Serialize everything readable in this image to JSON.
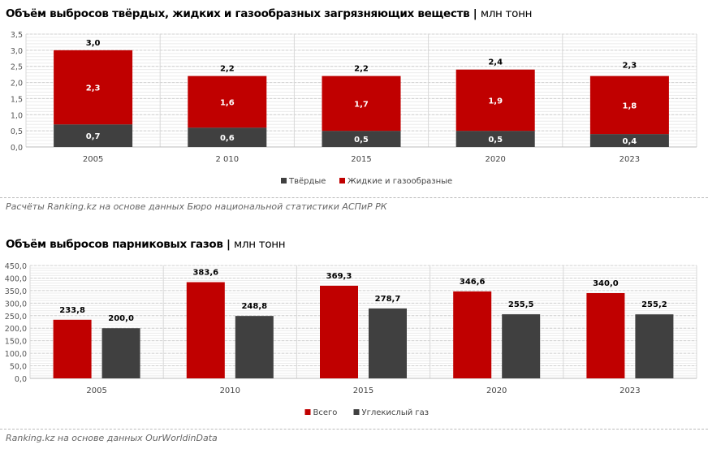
{
  "chart_data": [
    {
      "type": "bar",
      "stacked": true,
      "title": "Объём выбросов твёрдых, жидких и газообразных загрязняющих веществ",
      "unit": "млн тонн",
      "categories": [
        "2005",
        "2 010",
        "2015",
        "2020",
        "2023"
      ],
      "series": [
        {
          "name": "Твёрдые",
          "color": "#404040",
          "values": [
            0.7,
            0.6,
            0.5,
            0.5,
            0.4
          ],
          "labels": [
            "0,7",
            "0,6",
            "0,5",
            "0,5",
            "0,4"
          ]
        },
        {
          "name": "Жидкие и газообразные",
          "color": "#c00000",
          "values": [
            2.3,
            1.6,
            1.7,
            1.9,
            1.8
          ],
          "labels": [
            "2,3",
            "1,6",
            "1,7",
            "1,9",
            "1,8"
          ]
        }
      ],
      "totals": [
        "3,0",
        "2,2",
        "2,2",
        "2,4",
        "2,3"
      ],
      "totals_values": [
        3.0,
        2.2,
        2.2,
        2.4,
        2.3
      ],
      "ylim": [
        0,
        3.5
      ],
      "yticks": [
        "0,0",
        "0,5",
        "1,0",
        "1,5",
        "2,0",
        "2,5",
        "3,0",
        "3,5"
      ],
      "legend": "bottom",
      "grid": true,
      "source": "Расчёты Ranking.kz на основе данных Бюро национальной статистики АСПиР РК"
    },
    {
      "type": "bar",
      "title": "Объём выбросов парниковых газов",
      "unit": "млн тонн",
      "categories": [
        "2005",
        "2010",
        "2015",
        "2020",
        "2023"
      ],
      "series": [
        {
          "name": "Всего",
          "color": "#c00000",
          "values": [
            233.8,
            383.6,
            369.3,
            346.6,
            340.0
          ],
          "labels": [
            "233,8",
            "383,6",
            "369,3",
            "346,6",
            "340,0"
          ]
        },
        {
          "name": "Углекислый газ",
          "color": "#404040",
          "values": [
            200.0,
            248.8,
            278.7,
            255.5,
            255.2
          ],
          "labels": [
            "200,0",
            "248,8",
            "278,7",
            "255,5",
            "255,2"
          ]
        }
      ],
      "ylim": [
        0,
        450
      ],
      "yticks": [
        "0,0",
        "50,0",
        "100,0",
        "150,0",
        "200,0",
        "250,0",
        "300,0",
        "350,0",
        "400,0",
        "450,0"
      ],
      "legend": "bottom",
      "grid": true,
      "source": "Ranking.kz на основе данных OurWorldinData"
    }
  ]
}
